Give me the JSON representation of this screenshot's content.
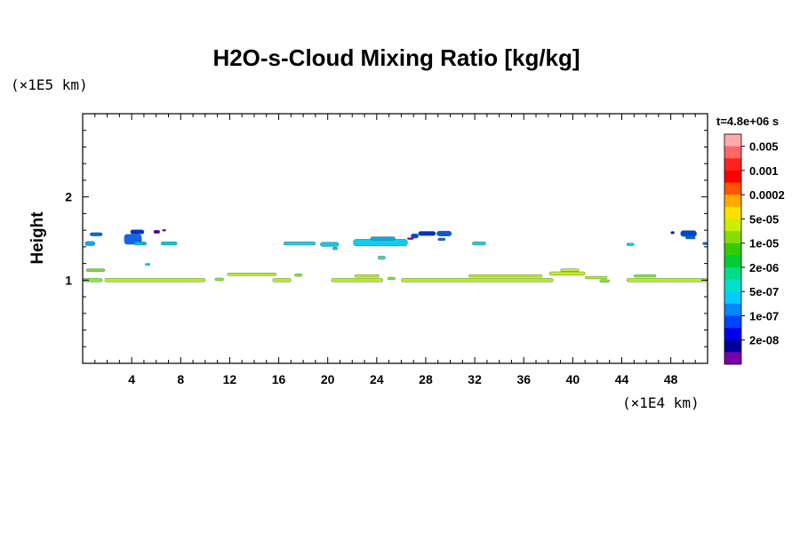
{
  "chart_data": {
    "type": "heatmap",
    "title": "H2O-s-Cloud Mixing Ratio [kg/kg]",
    "ylabel": "Height",
    "xlabel": "",
    "x_scale_label": "(×1E4 km)",
    "y_scale_label": "(×1E5 km)",
    "time_label": "t=4.8e+06 s",
    "xlim": [
      0,
      51
    ],
    "ylim": [
      0,
      3
    ],
    "x_ticks": [
      4,
      8,
      12,
      16,
      20,
      24,
      28,
      32,
      36,
      40,
      44,
      48
    ],
    "y_ticks": [
      1,
      2
    ],
    "colorbar": {
      "labels": [
        "0.005",
        "0.001",
        "0.0002",
        "5e-05",
        "1e-05",
        "2e-06",
        "5e-07",
        "1e-07",
        "2e-08"
      ],
      "colors": [
        "#ffaaaa",
        "#ff6666",
        "#ff2222",
        "#ff0000",
        "#ff5500",
        "#ffaa00",
        "#ffe000",
        "#ccee00",
        "#88dd00",
        "#33cc00",
        "#00cc33",
        "#00dd88",
        "#00e0cc",
        "#00ccff",
        "#0088ff",
        "#0044ff",
        "#0000ee",
        "#000099",
        "#7700aa"
      ]
    },
    "cloud_regions": [
      {
        "x0": 0.0,
        "x1": 1.6,
        "y": 1.0,
        "h": 0.04,
        "color": "#88ee33"
      },
      {
        "x0": 0.3,
        "x1": 1.8,
        "y": 1.12,
        "h": 0.03,
        "color": "#77dd22"
      },
      {
        "x0": 1.8,
        "x1": 10.0,
        "y": 1.0,
        "h": 0.04,
        "color": "#bbee22"
      },
      {
        "x0": 11.8,
        "x1": 15.8,
        "y": 1.07,
        "h": 0.03,
        "color": "#bbee22"
      },
      {
        "x0": 10.8,
        "x1": 11.5,
        "y": 1.01,
        "h": 0.03,
        "color": "#88ee33"
      },
      {
        "x0": 15.5,
        "x1": 17.0,
        "y": 1.0,
        "h": 0.04,
        "color": "#bbee22"
      },
      {
        "x0": 17.3,
        "x1": 17.9,
        "y": 1.06,
        "h": 0.03,
        "color": "#88ee33"
      },
      {
        "x0": 20.3,
        "x1": 24.5,
        "y": 1.0,
        "h": 0.04,
        "color": "#bbee22"
      },
      {
        "x0": 22.2,
        "x1": 24.2,
        "y": 1.05,
        "h": 0.03,
        "color": "#ccee22"
      },
      {
        "x0": 24.9,
        "x1": 25.5,
        "y": 1.02,
        "h": 0.03,
        "color": "#88ee33"
      },
      {
        "x0": 26.0,
        "x1": 38.4,
        "y": 1.0,
        "h": 0.04,
        "color": "#bbee22"
      },
      {
        "x0": 31.5,
        "x1": 37.5,
        "y": 1.05,
        "h": 0.03,
        "color": "#ccee22"
      },
      {
        "x0": 38.1,
        "x1": 41.0,
        "y": 1.08,
        "h": 0.04,
        "color": "#ccee22"
      },
      {
        "x0": 39.0,
        "x1": 40.5,
        "y": 1.12,
        "h": 0.03,
        "color": "#ccee22"
      },
      {
        "x0": 41.0,
        "x1": 42.8,
        "y": 1.03,
        "h": 0.03,
        "color": "#bbee22"
      },
      {
        "x0": 42.2,
        "x1": 43.0,
        "y": 0.99,
        "h": 0.03,
        "color": "#88ee33"
      },
      {
        "x0": 44.4,
        "x1": 51.0,
        "y": 1.0,
        "h": 0.04,
        "color": "#bbee22"
      },
      {
        "x0": 45.0,
        "x1": 46.8,
        "y": 1.05,
        "h": 0.03,
        "color": "#88ee33"
      },
      {
        "x0": 0.2,
        "x1": 1.0,
        "y": 1.44,
        "h": 0.05,
        "color": "#00aaff"
      },
      {
        "x0": 0.6,
        "x1": 1.6,
        "y": 1.55,
        "h": 0.04,
        "color": "#0066ee"
      },
      {
        "x0": 3.4,
        "x1": 4.8,
        "y": 1.49,
        "h": 0.12,
        "color": "#1166ee"
      },
      {
        "x0": 3.9,
        "x1": 5.0,
        "y": 1.58,
        "h": 0.05,
        "color": "#0033cc"
      },
      {
        "x0": 4.2,
        "x1": 5.2,
        "y": 1.44,
        "h": 0.04,
        "color": "#00bbee"
      },
      {
        "x0": 5.8,
        "x1": 6.3,
        "y": 1.58,
        "h": 0.04,
        "color": "#5500aa"
      },
      {
        "x0": 6.5,
        "x1": 6.8,
        "y": 1.6,
        "h": 0.02,
        "color": "#7700aa"
      },
      {
        "x0": 6.4,
        "x1": 7.7,
        "y": 1.44,
        "h": 0.04,
        "color": "#00ccdd"
      },
      {
        "x0": 16.4,
        "x1": 19.0,
        "y": 1.44,
        "h": 0.04,
        "color": "#22ccee"
      },
      {
        "x0": 19.4,
        "x1": 20.9,
        "y": 1.43,
        "h": 0.05,
        "color": "#00ccee"
      },
      {
        "x0": 20.4,
        "x1": 20.8,
        "y": 1.38,
        "h": 0.03,
        "color": "#00ccee"
      },
      {
        "x0": 22.1,
        "x1": 26.5,
        "y": 1.45,
        "h": 0.08,
        "color": "#11ccee"
      },
      {
        "x0": 23.5,
        "x1": 25.5,
        "y": 1.5,
        "h": 0.04,
        "color": "#00aaee"
      },
      {
        "x0": 24.1,
        "x1": 24.7,
        "y": 1.27,
        "h": 0.04,
        "color": "#44ddaa"
      },
      {
        "x0": 26.8,
        "x1": 27.4,
        "y": 1.53,
        "h": 0.05,
        "color": "#0044ee"
      },
      {
        "x0": 27.4,
        "x1": 28.8,
        "y": 1.56,
        "h": 0.05,
        "color": "#0033bb"
      },
      {
        "x0": 28.9,
        "x1": 30.1,
        "y": 1.56,
        "h": 0.06,
        "color": "#1155dd"
      },
      {
        "x0": 29.0,
        "x1": 29.6,
        "y": 1.49,
        "h": 0.03,
        "color": "#0066ee"
      },
      {
        "x0": 26.5,
        "x1": 27.0,
        "y": 1.5,
        "h": 0.02,
        "color": "#7700aa"
      },
      {
        "x0": 31.8,
        "x1": 32.9,
        "y": 1.44,
        "h": 0.04,
        "color": "#22ccee"
      },
      {
        "x0": 44.4,
        "x1": 45.0,
        "y": 1.43,
        "h": 0.03,
        "color": "#00ccee"
      },
      {
        "x0": 48.8,
        "x1": 50.1,
        "y": 1.56,
        "h": 0.07,
        "color": "#0044dd"
      },
      {
        "x0": 49.2,
        "x1": 50.0,
        "y": 1.51,
        "h": 0.03,
        "color": "#0066ee"
      },
      {
        "x0": 48.0,
        "x1": 48.3,
        "y": 1.57,
        "h": 0.03,
        "color": "#3300aa"
      },
      {
        "x0": 50.6,
        "x1": 51.0,
        "y": 1.44,
        "h": 0.03,
        "color": "#0066ee"
      },
      {
        "x0": 5.1,
        "x1": 5.5,
        "y": 1.19,
        "h": 0.02,
        "color": "#00ccee"
      }
    ]
  }
}
